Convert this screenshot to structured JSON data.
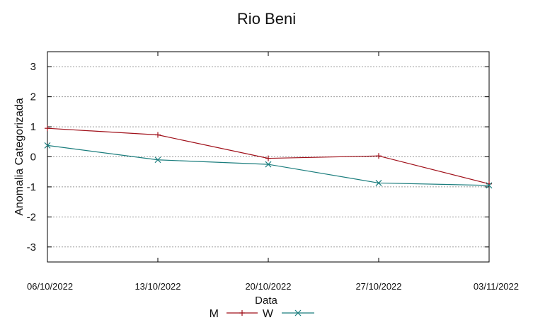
{
  "chart_data": {
    "type": "line",
    "title": "Rio Beni",
    "xlabel": "Data",
    "ylabel": "Anomalia Categorizada",
    "categories": [
      "06/10/2022",
      "13/10/2022",
      "20/10/2022",
      "27/10/2022",
      "03/11/2022"
    ],
    "ylim": [
      -3.5,
      3.5
    ],
    "yticks": [
      3,
      2,
      1,
      0,
      -1,
      -2,
      -3
    ],
    "ytick_labels": [
      "3",
      "2",
      "1",
      "0",
      "-1",
      "-2",
      "-3"
    ],
    "grid": true,
    "legend_position": "bottom",
    "series": [
      {
        "name": "M",
        "values": [
          0.95,
          0.73,
          -0.05,
          0.03,
          -0.9
        ],
        "color": "#a0101a",
        "marker": "plus"
      },
      {
        "name": "W",
        "values": [
          0.38,
          -0.1,
          -0.25,
          -0.87,
          -0.95
        ],
        "color": "#1a7d7d",
        "marker": "cross"
      }
    ]
  }
}
